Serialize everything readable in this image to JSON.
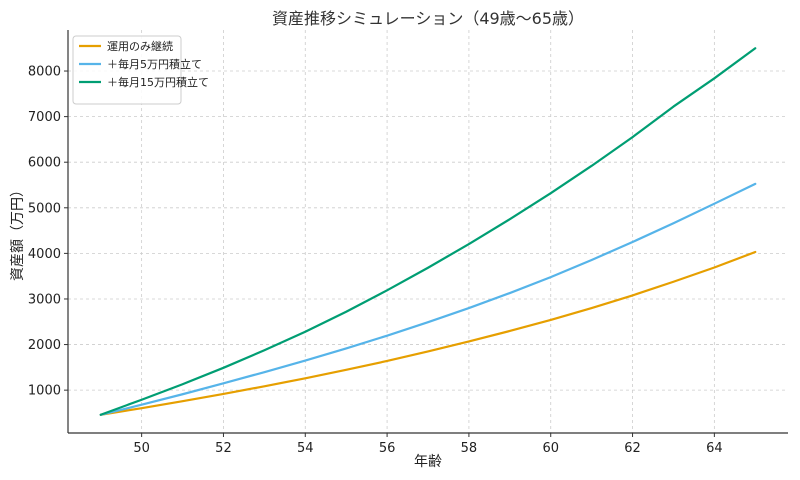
{
  "chart_data": {
    "type": "line",
    "title": "資産推移シミュレーション（49歳〜65歳）",
    "xlabel": "年齢",
    "ylabel": "資産額（万円）",
    "xlim": [
      48.2,
      65.8
    ],
    "ylim": [
      60,
      8900
    ],
    "xticks": [
      50,
      52,
      54,
      56,
      58,
      60,
      62,
      64
    ],
    "yticks": [
      1000,
      2000,
      3000,
      4000,
      5000,
      6000,
      7000,
      8000
    ],
    "grid": true,
    "legend_position": "top-left",
    "x": [
      49,
      50,
      51,
      52,
      53,
      54,
      55,
      56,
      57,
      58,
      59,
      60,
      61,
      62,
      63,
      64,
      65
    ],
    "series": [
      {
        "name": "運用のみ継続",
        "color": "#E69F00",
        "values": [
          460,
          605,
          758,
          917,
          1085,
          1260,
          1445,
          1640,
          1848,
          2068,
          2298,
          2540,
          2800,
          3078,
          3378,
          3690,
          4030
        ]
      },
      {
        "name": "＋毎月5万円積立て",
        "color": "#56B4E9",
        "values": [
          460,
          680,
          910,
          1150,
          1395,
          1650,
          1915,
          2195,
          2490,
          2800,
          3130,
          3480,
          3855,
          4250,
          4660,
          5090,
          5525
        ]
      },
      {
        "name": "＋毎月15万円積立て",
        "color": "#009E73",
        "values": [
          460,
          790,
          1130,
          1490,
          1875,
          2280,
          2720,
          3190,
          3685,
          4205,
          4750,
          5320,
          5920,
          6550,
          7220,
          7840,
          8500
        ]
      }
    ]
  }
}
